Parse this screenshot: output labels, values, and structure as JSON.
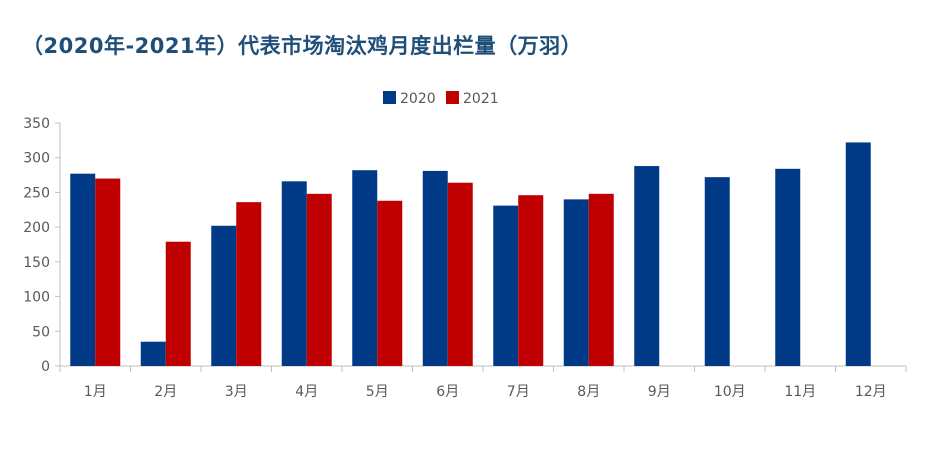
{
  "chart_data": {
    "type": "bar",
    "title": "（2020年-2021年）代表市场淘汰鸡月度出栏量（万羽）",
    "categories": [
      "1月",
      "2月",
      "3月",
      "4月",
      "5月",
      "6月",
      "7月",
      "8月",
      "9月",
      "10月",
      "11月",
      "12月"
    ],
    "series": [
      {
        "name": "2020",
        "color": "#003a86",
        "values": [
          277,
          35,
          202,
          266,
          282,
          281,
          231,
          240,
          288,
          272,
          284,
          322
        ]
      },
      {
        "name": "2021",
        "color": "#c00000",
        "values": [
          270,
          179,
          236,
          248,
          238,
          264,
          246,
          248,
          null,
          null,
          null,
          null
        ]
      }
    ],
    "ylim": [
      0,
      350
    ],
    "yticks": [
      0,
      50,
      100,
      150,
      200,
      250,
      300,
      350
    ],
    "grid": false,
    "legend_position": "top-center"
  }
}
